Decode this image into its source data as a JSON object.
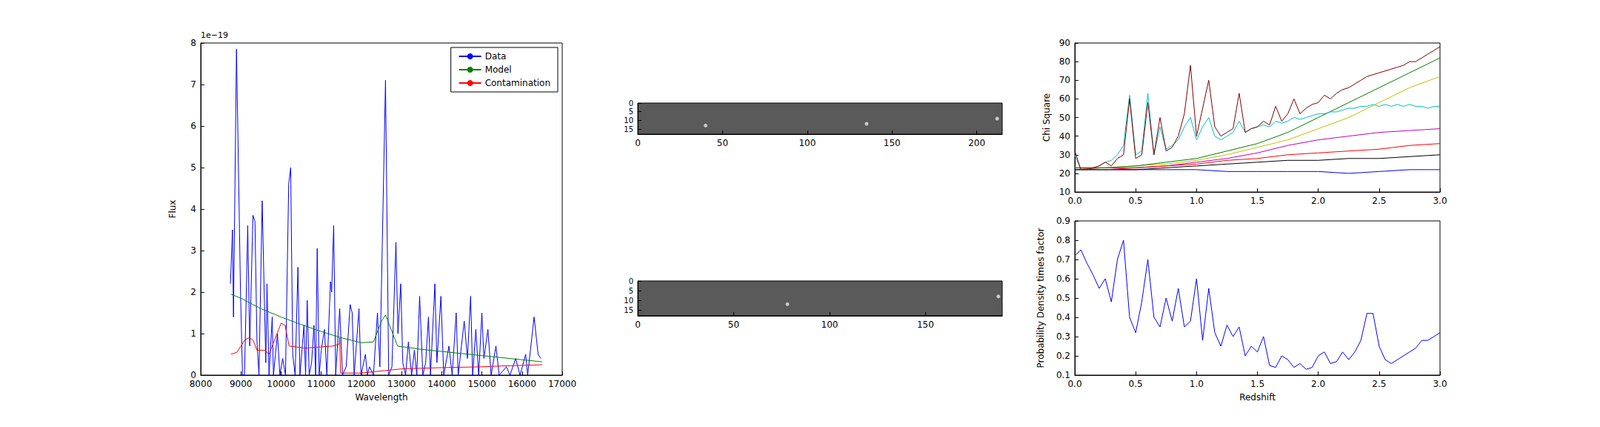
{
  "chart_data": [
    {
      "type": "line",
      "x_label": "Wavelength",
      "y_label": "Flux",
      "annotation": "1e−19",
      "xlim": [
        8000,
        17000
      ],
      "xticks": [
        8000,
        9000,
        10000,
        11000,
        12000,
        13000,
        14000,
        15000,
        16000,
        17000
      ],
      "ylim": [
        0,
        8
      ],
      "yticks": [
        0,
        1,
        2,
        3,
        4,
        5,
        6,
        7,
        8
      ],
      "grid": false,
      "legend": "upper right",
      "series": [
        {
          "name": "Data",
          "color": "#0000ff",
          "x": [
            8740,
            8790,
            8815,
            8890,
            8990,
            9040,
            9090,
            9170,
            9220,
            9300,
            9350,
            9400,
            9450,
            9530,
            9580,
            9620,
            9650,
            9700,
            9780,
            9810,
            9910,
            9970,
            10040,
            10110,
            10190,
            10240,
            10290,
            10350,
            10420,
            10470,
            10570,
            10610,
            10650,
            10700,
            10760,
            10820,
            10860,
            10900,
            10950,
            11000,
            11080,
            11140,
            11230,
            11260,
            11310,
            11360,
            11460,
            11530,
            11620,
            11720,
            11770,
            11820,
            11940,
            11990,
            12100,
            12150,
            12200,
            12300,
            12400,
            12460,
            12600,
            12680,
            12760,
            12860,
            12910,
            12980,
            13030,
            13100,
            13170,
            13250,
            13320,
            13380,
            13450,
            13530,
            13600,
            13670,
            13720,
            13830,
            13880,
            13980,
            14050,
            14180,
            14260,
            14360,
            14410,
            14560,
            14640,
            14720,
            14770,
            14850,
            14920,
            15000,
            15050,
            15150,
            15230,
            15350,
            15430,
            15610,
            15700,
            15840,
            15950,
            16090,
            16140,
            16300,
            16400,
            16470
          ],
          "values": [
            2.2,
            3.5,
            1.4,
            7.85,
            2.0,
            0,
            0,
            3.6,
            0.7,
            3.85,
            3.7,
            0.8,
            0,
            4.2,
            2.0,
            0.3,
            2.2,
            0,
            1.4,
            0,
            1.0,
            0,
            0.4,
            0,
            4.6,
            5.0,
            0.5,
            0,
            2.6,
            0,
            1.2,
            0,
            1.8,
            0,
            0.3,
            1.2,
            0,
            3.05,
            0,
            0.6,
            1.1,
            0,
            2.25,
            2.0,
            3.6,
            0,
            1.6,
            0,
            0.2,
            1.7,
            1.5,
            0,
            1.6,
            0,
            0.5,
            0,
            0.2,
            0,
            1.5,
            0.2,
            7.1,
            0,
            0.2,
            3.2,
            1.0,
            2.2,
            0.3,
            0,
            0.8,
            0,
            0.6,
            0,
            1.9,
            0,
            0.3,
            1.4,
            0,
            2.2,
            0.3,
            1.9,
            0,
            0.7,
            0,
            1.5,
            0,
            1.3,
            0.4,
            1.9,
            0,
            1.1,
            0,
            1.5,
            0.4,
            1.1,
            0,
            0.7,
            0,
            0.2,
            0,
            0.4,
            0,
            0.5,
            0,
            1.4,
            0.5,
            0.4
          ]
        },
        {
          "name": "Model",
          "color": "#008000",
          "x": [
            8750,
            9000,
            9500,
            10000,
            10500,
            11000,
            11500,
            12000,
            12300,
            12500,
            12600,
            12700,
            12900,
            13500,
            14000,
            14500,
            15000,
            15500,
            16000,
            16500
          ],
          "values": [
            1.95,
            1.85,
            1.6,
            1.4,
            1.22,
            1.05,
            0.9,
            0.78,
            0.8,
            1.3,
            1.45,
            1.2,
            0.7,
            0.62,
            0.57,
            0.52,
            0.47,
            0.42,
            0.37,
            0.32
          ]
        },
        {
          "name": "Contamination",
          "color": "#ff0000",
          "x": [
            8750,
            8900,
            9100,
            9200,
            9300,
            9400,
            9600,
            9700,
            9900,
            10000,
            10100,
            10200,
            10600,
            11000,
            11300,
            11450,
            11460,
            11480,
            12000,
            12500,
            13000,
            14000,
            15000,
            15500,
            16500
          ],
          "values": [
            0.5,
            0.55,
            0.85,
            0.9,
            0.85,
            0.6,
            0.6,
            0.5,
            1.0,
            1.25,
            1.2,
            0.7,
            0.65,
            0.68,
            0.7,
            0.75,
            0.9,
            0.05,
            0.05,
            0.1,
            0.15,
            0.18,
            0.2,
            0.22,
            0.25
          ]
        }
      ]
    },
    {
      "type": "image",
      "color": "#5a5a5a",
      "xlim": [
        0,
        215
      ],
      "xticks": [
        0,
        50,
        100,
        150,
        200
      ],
      "ylim": [
        18,
        0
      ],
      "yticks": [
        0,
        5,
        10,
        15
      ],
      "grid": false,
      "series": [
        {
          "type": "scatter",
          "color": "#e6e6e6",
          "x": [
            40,
            135,
            212
          ],
          "values": [
            13,
            12,
            9
          ]
        }
      ]
    },
    {
      "type": "image",
      "color": "#5a5a5a",
      "xlim": [
        0,
        190
      ],
      "xticks": [
        0,
        50,
        100,
        150
      ],
      "ylim": [
        18,
        0
      ],
      "yticks": [
        0,
        5,
        10,
        15
      ],
      "grid": false,
      "series": [
        {
          "type": "scatter",
          "color": "#e6e6e6",
          "x": [
            78,
            188
          ],
          "values": [
            12,
            8
          ]
        }
      ]
    },
    {
      "type": "line",
      "y_label": "Chi Square",
      "xlim": [
        0,
        3
      ],
      "xticks": [
        {
          "value": 0,
          "label": "0.0"
        },
        0.5,
        {
          "value": 1,
          "label": "1.0"
        },
        1.5,
        {
          "value": 2,
          "label": "2.0"
        },
        2.5,
        {
          "value": 3,
          "label": "3.0"
        }
      ],
      "ylim": [
        10,
        90
      ],
      "yticks": [
        10,
        20,
        30,
        40,
        50,
        60,
        70,
        80,
        90
      ],
      "grid": false,
      "series": [
        {
          "color": "#0000ff",
          "x": [
            0,
            0.25,
            0.5,
            0.75,
            1,
            1.25,
            1.5,
            1.75,
            2,
            2.25,
            2.5,
            2.75,
            3
          ],
          "values": [
            22,
            22,
            22,
            22,
            22,
            21,
            21,
            21,
            21,
            20,
            21,
            22,
            22
          ]
        },
        {
          "color": "#000000",
          "x": [
            0,
            0.25,
            0.5,
            0.75,
            1,
            1.25,
            1.5,
            1.75,
            2,
            2.25,
            2.5,
            2.75,
            3
          ],
          "values": [
            22,
            22,
            22,
            23,
            24,
            25,
            26,
            27,
            27,
            28,
            28,
            29,
            30
          ]
        },
        {
          "color": "#bf00bf",
          "x": [
            0,
            0.25,
            0.5,
            0.75,
            1,
            1.25,
            1.5,
            1.75,
            2,
            2.25,
            2.5,
            2.75,
            3
          ],
          "values": [
            23,
            23,
            23,
            24,
            26,
            28,
            31,
            35,
            38,
            40,
            42,
            43,
            44
          ]
        },
        {
          "color": "#ff0000",
          "x": [
            0,
            0.25,
            0.5,
            0.75,
            1,
            1.25,
            1.5,
            1.75,
            2,
            2.25,
            2.5,
            2.75,
            3
          ],
          "values": [
            23,
            22,
            23,
            24,
            25,
            27,
            28,
            30,
            31,
            32,
            33,
            35,
            36
          ]
        },
        {
          "color": "#bfbf00",
          "x": [
            0,
            0.25,
            0.5,
            0.75,
            1,
            1.25,
            1.5,
            1.75,
            2,
            2.25,
            2.5,
            2.75,
            3
          ],
          "values": [
            23,
            23,
            24,
            25,
            27,
            30,
            34,
            38,
            44,
            50,
            58,
            66,
            72
          ]
        },
        {
          "color": "#008000",
          "x": [
            0,
            0.25,
            0.5,
            0.75,
            1,
            1.25,
            1.5,
            1.75,
            2,
            2.25,
            2.5,
            2.75,
            3
          ],
          "values": [
            23,
            23,
            24,
            26,
            28,
            32,
            36,
            42,
            50,
            58,
            66,
            74,
            82
          ]
        },
        {
          "color": "#00bfbf",
          "x": [
            0,
            0.05,
            0.1,
            0.15,
            0.2,
            0.25,
            0.3,
            0.35,
            0.4,
            0.45,
            0.5,
            0.55,
            0.6,
            0.65,
            0.7,
            0.75,
            0.8,
            0.85,
            0.9,
            0.95,
            1,
            1.05,
            1.1,
            1.15,
            1.2,
            1.25,
            1.3,
            1.35,
            1.4,
            1.45,
            1.5,
            1.55,
            1.6,
            1.65,
            1.7,
            1.75,
            1.8,
            1.85,
            1.9,
            1.95,
            2,
            2.05,
            2.1,
            2.15,
            2.2,
            2.25,
            2.3,
            2.35,
            2.4,
            2.45,
            2.5,
            2.55,
            2.6,
            2.65,
            2.7,
            2.75,
            2.8,
            2.85,
            2.9,
            2.95,
            3
          ],
          "values": [
            30,
            22,
            22,
            23,
            24,
            26,
            27,
            30,
            35,
            62,
            30,
            32,
            63,
            30,
            45,
            33,
            35,
            38,
            45,
            50,
            38,
            45,
            50,
            40,
            38,
            40,
            42,
            48,
            42,
            44,
            45,
            46,
            45,
            48,
            47,
            48,
            50,
            49,
            50,
            51,
            52,
            52,
            53,
            53,
            54,
            55,
            55,
            56,
            56,
            57,
            56,
            57,
            56,
            57,
            56,
            57,
            56,
            56,
            55,
            56,
            56
          ]
        },
        {
          "color": "#800000",
          "x": [
            0,
            0.05,
            0.1,
            0.15,
            0.2,
            0.25,
            0.3,
            0.35,
            0.4,
            0.45,
            0.5,
            0.55,
            0.6,
            0.65,
            0.7,
            0.75,
            0.8,
            0.85,
            0.9,
            0.95,
            1,
            1.05,
            1.1,
            1.15,
            1.2,
            1.25,
            1.3,
            1.35,
            1.4,
            1.45,
            1.5,
            1.55,
            1.6,
            1.65,
            1.7,
            1.75,
            1.8,
            1.85,
            1.9,
            1.95,
            2,
            2.05,
            2.1,
            2.15,
            2.2,
            2.25,
            2.3,
            2.35,
            2.4,
            2.45,
            2.5,
            2.55,
            2.6,
            2.65,
            2.7,
            2.75,
            2.8,
            2.85,
            2.9,
            2.95,
            3
          ],
          "values": [
            32,
            22,
            22,
            23,
            24,
            26,
            24,
            28,
            30,
            60,
            28,
            30,
            58,
            30,
            50,
            32,
            34,
            40,
            52,
            78,
            40,
            55,
            70,
            45,
            40,
            42,
            44,
            63,
            42,
            44,
            45,
            48,
            46,
            56,
            48,
            52,
            60,
            52,
            55,
            57,
            58,
            62,
            60,
            63,
            65,
            66,
            68,
            70,
            72,
            73,
            74,
            75,
            76,
            77,
            78,
            80,
            80,
            82,
            84,
            86,
            88
          ]
        }
      ]
    },
    {
      "type": "line",
      "x_label": "Redshift",
      "y_label": "Probability Density times factor",
      "xlim": [
        0,
        3
      ],
      "xticks": [
        {
          "value": 0,
          "label": "0.0"
        },
        0.5,
        {
          "value": 1,
          "label": "1.0"
        },
        1.5,
        {
          "value": 2,
          "label": "2.0"
        },
        2.5,
        {
          "value": 3,
          "label": "3.0"
        }
      ],
      "ylim": [
        0.1,
        0.9
      ],
      "yticks": [
        0.1,
        0.2,
        0.3,
        0.4,
        0.5,
        0.6,
        0.7,
        0.8,
        0.9
      ],
      "grid": false,
      "series": [
        {
          "color": "#0000ff",
          "x": [
            0,
            0.05,
            0.1,
            0.15,
            0.2,
            0.25,
            0.3,
            0.35,
            0.4,
            0.45,
            0.5,
            0.55,
            0.6,
            0.65,
            0.7,
            0.75,
            0.8,
            0.85,
            0.9,
            0.95,
            1,
            1.05,
            1.1,
            1.15,
            1.2,
            1.25,
            1.3,
            1.35,
            1.4,
            1.45,
            1.5,
            1.55,
            1.6,
            1.65,
            1.7,
            1.75,
            1.8,
            1.85,
            1.9,
            1.95,
            2,
            2.05,
            2.1,
            2.15,
            2.2,
            2.25,
            2.3,
            2.35,
            2.4,
            2.45,
            2.5,
            2.55,
            2.6,
            2.65,
            2.7,
            2.75,
            2.8,
            2.85,
            2.9,
            2.95,
            3
          ],
          "values": [
            0.72,
            0.75,
            0.68,
            0.62,
            0.55,
            0.6,
            0.48,
            0.7,
            0.8,
            0.4,
            0.32,
            0.48,
            0.7,
            0.4,
            0.35,
            0.5,
            0.38,
            0.55,
            0.35,
            0.38,
            0.6,
            0.28,
            0.55,
            0.32,
            0.25,
            0.36,
            0.3,
            0.35,
            0.2,
            0.25,
            0.22,
            0.3,
            0.15,
            0.14,
            0.2,
            0.18,
            0.14,
            0.16,
            0.13,
            0.14,
            0.2,
            0.22,
            0.16,
            0.17,
            0.22,
            0.18,
            0.22,
            0.28,
            0.42,
            0.42,
            0.25,
            0.18,
            0.16,
            0.18,
            0.2,
            0.22,
            0.24,
            0.28,
            0.28,
            0.3,
            0.32
          ]
        }
      ]
    }
  ]
}
